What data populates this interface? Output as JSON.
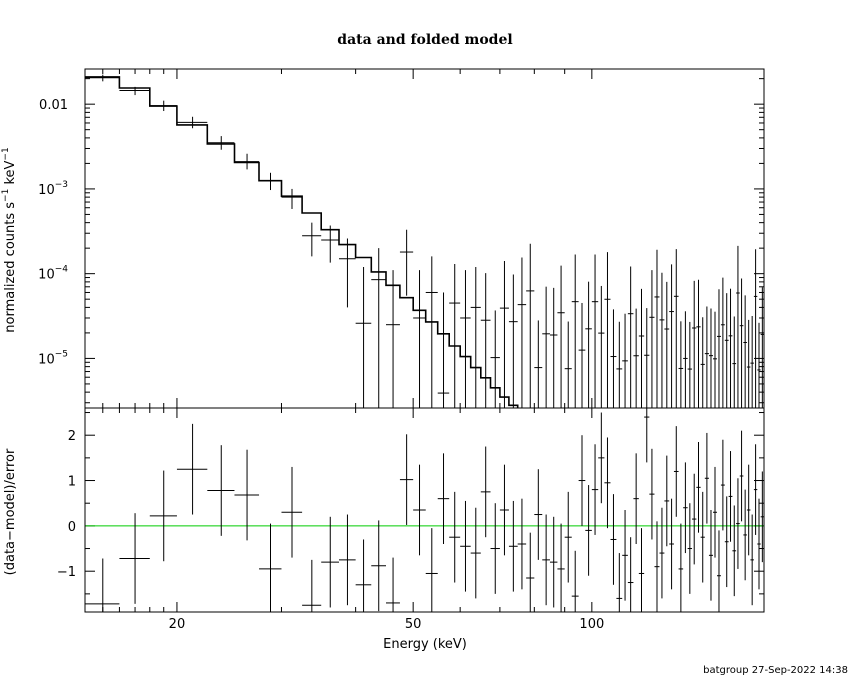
{
  "title": "data and folded model",
  "footer": "batgroup 27-Sep-2022 14:38",
  "colors": {
    "axes": "#000000",
    "zero_line": "#00cc00",
    "background": "#ffffff"
  },
  "chart_data": [
    {
      "panel": "top",
      "type": "scatter",
      "ylabel": "normalized counts s",
      "ylabel_sup1": "−1",
      "ylabel_mid": " keV",
      "ylabel_sup2": "−1",
      "xscale": "log",
      "yscale": "log",
      "xlim": [
        14,
        195
      ],
      "ylim": [
        2.6e-06,
        0.026
      ],
      "ytick_labels": [
        {
          "value": 0.01,
          "base": "0.01",
          "exp": ""
        },
        {
          "value": 0.001,
          "base": "10",
          "exp": "−3"
        },
        {
          "value": 0.0001,
          "base": "10",
          "exp": "−4"
        },
        {
          "value": 1e-05,
          "base": "10",
          "exp": "−5"
        }
      ],
      "model_bins": [
        [
          14,
          16,
          0.021
        ],
        [
          16,
          18,
          0.0155
        ],
        [
          18,
          20,
          0.0095
        ],
        [
          20,
          22.5,
          0.0057
        ],
        [
          22.5,
          25,
          0.0034
        ],
        [
          25,
          27.5,
          0.00205
        ],
        [
          27.5,
          30,
          0.00125
        ],
        [
          30,
          32.5,
          0.00082
        ],
        [
          32.5,
          35,
          0.00052
        ],
        [
          35,
          37.5,
          0.00033
        ],
        [
          37.5,
          40,
          0.00022
        ],
        [
          40,
          42.5,
          0.000155
        ],
        [
          42.5,
          45,
          0.000105
        ],
        [
          45,
          47.5,
          7.3e-05
        ],
        [
          47.5,
          50,
          5.2e-05
        ],
        [
          50,
          52.5,
          3.7e-05
        ],
        [
          52.5,
          55,
          2.7e-05
        ],
        [
          55,
          57.5,
          1.95e-05
        ],
        [
          57.5,
          60,
          1.4e-05
        ],
        [
          60,
          62.5,
          1.05e-05
        ],
        [
          62.5,
          65,
          7.8e-06
        ],
        [
          65,
          67.5,
          5.9e-06
        ],
        [
          67.5,
          70,
          4.5e-06
        ],
        [
          70,
          72.5,
          3.5e-06
        ],
        [
          72.5,
          75,
          2.8e-06
        ]
      ],
      "points": [
        [
          15,
          1,
          0.0205,
          0.0186,
          0.0223
        ],
        [
          17,
          1,
          0.0145,
          0.0128,
          0.016
        ],
        [
          19,
          1,
          0.0096,
          0.0083,
          0.011
        ],
        [
          21.25,
          1.25,
          0.0061,
          0.0052,
          0.0071
        ],
        [
          23.75,
          1.25,
          0.0035,
          0.0029,
          0.0042
        ],
        [
          26.25,
          1.25,
          0.0021,
          0.0017,
          0.0026
        ],
        [
          28.75,
          1.25,
          0.00125,
          0.00097,
          0.00155
        ],
        [
          31.25,
          1.25,
          0.0008,
          0.00058,
          0.001
        ],
        [
          33.75,
          1.25,
          0.00028,
          0.00016,
          0.0004
        ],
        [
          36.25,
          1.25,
          0.00025,
          0.000135,
          0.00037
        ],
        [
          38.75,
          1.25,
          0.00015,
          4e-05,
          0.00026
        ],
        [
          41.25,
          1.25,
          2.6e-05,
          2.6e-06,
          0.00012
        ],
        [
          43.75,
          1.25,
          8.5e-05,
          2.6e-06,
          0.0002
        ],
        [
          46.25,
          1.25,
          2.5e-05,
          2.6e-06,
          0.00011
        ],
        [
          48.75,
          1.25,
          0.00018,
          5.5e-05,
          0.00033
        ],
        [
          51.25,
          1.25,
          3e-05,
          2.6e-06,
          0.00011
        ],
        [
          53.75,
          1.25,
          6e-05,
          2.6e-06,
          0.00016
        ],
        [
          56.25,
          1.25,
          3.9e-06,
          2.6e-06,
          6e-05
        ],
        [
          58.75,
          1.25,
          4.5e-05,
          2.6e-06,
          0.00013
        ],
        [
          61.25,
          1.25,
          3e-05,
          2.6e-06,
          0.00011
        ],
        [
          63.75,
          1.25,
          4e-05,
          2.6e-06,
          0.00012
        ]
      ]
    },
    {
      "panel": "bottom",
      "type": "scatter",
      "xlabel": "Energy (keV)",
      "ylabel": "(data−model)/error",
      "xscale": "log",
      "xlim": [
        14,
        195
      ],
      "ylim": [
        -1.9,
        2.6
      ],
      "ytick_labels": [
        {
          "value": 2,
          "label": "2"
        },
        {
          "value": 1,
          "label": "1"
        },
        {
          "value": 0,
          "label": "0"
        },
        {
          "value": -1,
          "label": "−1"
        }
      ],
      "xtick_labels": [
        {
          "value": 20,
          "label": "20"
        },
        {
          "value": 50,
          "label": "50"
        },
        {
          "value": 100,
          "label": "100"
        }
      ],
      "points": [
        [
          15,
          1,
          -1.72,
          -1
        ],
        [
          17,
          1,
          -0.72,
          -1
        ],
        [
          19,
          1,
          0.22,
          -1
        ],
        [
          21.25,
          1.25,
          1.25,
          -1
        ],
        [
          23.75,
          1.25,
          0.78,
          -1
        ],
        [
          26.25,
          1.25,
          0.68,
          -1
        ],
        [
          28.75,
          1.25,
          -0.95,
          -1
        ],
        [
          31.25,
          1.25,
          0.3,
          -1
        ],
        [
          33.75,
          1.25,
          -1.75,
          -1
        ],
        [
          36.25,
          1.25,
          -0.8,
          -1
        ],
        [
          38.75,
          1.25,
          -0.75,
          -1
        ],
        [
          41.25,
          1.25,
          -1.3,
          -1
        ],
        [
          43.75,
          1.25,
          -0.88,
          -1
        ],
        [
          46.25,
          1.25,
          -1.7,
          -1
        ],
        [
          48.75,
          1.25,
          1.02,
          -1
        ],
        [
          51.25,
          1.25,
          0.35,
          -1
        ],
        [
          53.75,
          1.25,
          -1.05,
          -1
        ],
        [
          56.25,
          1.25,
          0.6,
          -1
        ],
        [
          58.75,
          1.25,
          -0.25,
          -1
        ],
        [
          61.25,
          1.25,
          -0.45,
          -1
        ],
        [
          63.75,
          1.25,
          -0.6,
          -1
        ],
        [
          66.25,
          1.25,
          0.75,
          -1
        ],
        [
          68.75,
          1.25,
          -0.5,
          -1
        ],
        [
          71.25,
          1.25,
          0.35,
          -1
        ],
        [
          73.75,
          1.25,
          -0.45,
          -1
        ],
        [
          76.25,
          1.25,
          -0.4,
          -1
        ],
        [
          78.75,
          1.25,
          -1.15,
          -1
        ],
        [
          81.25,
          1.25,
          0.25,
          -1
        ],
        [
          83.75,
          1.25,
          -0.75,
          -1
        ],
        [
          86.25,
          1.25,
          -0.8,
          -1
        ],
        [
          88.75,
          1.25,
          -0.95,
          -1
        ],
        [
          91.25,
          1.25,
          -0.25,
          -1
        ],
        [
          93.75,
          1.25,
          -1.55,
          -1
        ],
        [
          96.25,
          1.25,
          1.0,
          -1
        ],
        [
          98.75,
          1.25,
          -0.1,
          -1
        ],
        [
          101.25,
          1.25,
          0.8,
          -1
        ],
        [
          103.75,
          1.25,
          1.5,
          -1
        ],
        [
          106.25,
          1.25,
          0.95,
          -1
        ],
        [
          108.75,
          1.25,
          -0.3,
          -1
        ],
        [
          111.25,
          1.25,
          -1.6,
          -1
        ],
        [
          113.75,
          1.25,
          -0.65,
          -1
        ],
        [
          116.25,
          1.25,
          -1.25,
          -1
        ],
        [
          118.75,
          1.25,
          0.6,
          -1
        ],
        [
          121.25,
          1.25,
          -1.05,
          -1
        ],
        [
          123.75,
          1.25,
          2.4,
          -1
        ],
        [
          126.25,
          1.25,
          0.7,
          -1
        ],
        [
          128.75,
          1.25,
          -0.9,
          -1
        ],
        [
          131.25,
          1.25,
          -0.6,
          -1
        ],
        [
          133.75,
          1.25,
          0.55,
          -1
        ],
        [
          136.25,
          1.25,
          -0.4,
          -1
        ],
        [
          138.75,
          1.25,
          1.2,
          -1
        ],
        [
          141.25,
          1.25,
          -0.95,
          -1
        ],
        [
          143.75,
          1.25,
          0.4,
          -1
        ],
        [
          146.25,
          1.25,
          -0.5,
          -1
        ],
        [
          148.75,
          1.25,
          0.15,
          -1
        ],
        [
          151.25,
          1.25,
          0.85,
          -1
        ],
        [
          153.75,
          1.25,
          -0.25,
          -1
        ],
        [
          156.25,
          1.25,
          1.05,
          -1
        ],
        [
          158.75,
          1.25,
          -0.65,
          -1
        ],
        [
          161.25,
          1.25,
          0.3,
          -1
        ],
        [
          163.75,
          1.25,
          -1.1,
          -1
        ],
        [
          166.25,
          1.25,
          0.9,
          -1
        ],
        [
          168.75,
          1.25,
          -0.35,
          -1
        ],
        [
          171.25,
          1.25,
          0.65,
          -1
        ],
        [
          173.75,
          1.25,
          -0.55,
          -1
        ],
        [
          176.25,
          1.25,
          0.05,
          -1
        ],
        [
          178.75,
          1.25,
          1.1,
          -1
        ],
        [
          181.25,
          1.25,
          -0.2,
          -1
        ],
        [
          183.75,
          1.25,
          0.35,
          -1
        ],
        [
          186.25,
          1.25,
          -0.75,
          -1
        ],
        [
          188.75,
          1.25,
          0.8,
          -1
        ],
        [
          191.25,
          1.25,
          -0.4,
          -1
        ],
        [
          193.75,
          1.25,
          0.2,
          -1
        ]
      ]
    }
  ]
}
